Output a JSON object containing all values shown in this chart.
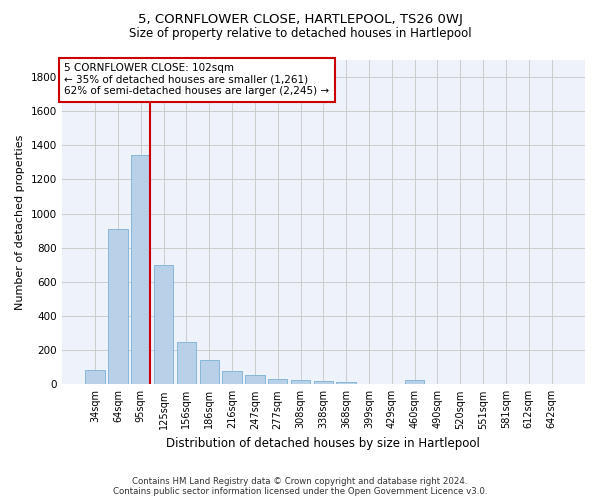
{
  "title": "5, CORNFLOWER CLOSE, HARTLEPOOL, TS26 0WJ",
  "subtitle": "Size of property relative to detached houses in Hartlepool",
  "xlabel": "Distribution of detached houses by size in Hartlepool",
  "ylabel": "Number of detached properties",
  "bar_labels": [
    "34sqm",
    "64sqm",
    "95sqm",
    "125sqm",
    "156sqm",
    "186sqm",
    "216sqm",
    "247sqm",
    "277sqm",
    "308sqm",
    "338sqm",
    "368sqm",
    "399sqm",
    "429sqm",
    "460sqm",
    "490sqm",
    "520sqm",
    "551sqm",
    "581sqm",
    "612sqm",
    "642sqm"
  ],
  "bar_values": [
    85,
    910,
    1345,
    700,
    250,
    140,
    80,
    55,
    30,
    25,
    20,
    15,
    0,
    0,
    25,
    0,
    0,
    0,
    0,
    0,
    0
  ],
  "bar_color": "#b8d0e8",
  "bar_edge_color": "#7aafd4",
  "vline_color": "#cc0000",
  "annotation_text": "5 CORNFLOWER CLOSE: 102sqm\n← 35% of detached houses are smaller (1,261)\n62% of semi-detached houses are larger (2,245) →",
  "annotation_box_color": "#ffffff",
  "annotation_box_edge": "#cc0000",
  "ylim": [
    0,
    1900
  ],
  "yticks": [
    0,
    200,
    400,
    600,
    800,
    1000,
    1200,
    1400,
    1600,
    1800
  ],
  "grid_color": "#cccccc",
  "bg_color": "#edf2fb",
  "title_fontsize": 9.5,
  "subtitle_fontsize": 8.5,
  "footer1": "Contains HM Land Registry data © Crown copyright and database right 2024.",
  "footer2": "Contains public sector information licensed under the Open Government Licence v3.0."
}
